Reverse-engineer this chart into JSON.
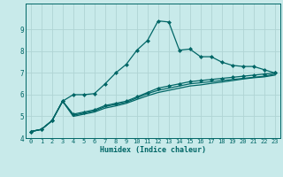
{
  "xlabel": "Humidex (Indice chaleur)",
  "ylabel": "",
  "background_color": "#c8eaea",
  "grid_color": "#b0d4d4",
  "line_color": "#006666",
  "x_values": [
    0,
    1,
    2,
    3,
    4,
    5,
    6,
    7,
    8,
    9,
    10,
    11,
    12,
    13,
    14,
    15,
    16,
    17,
    18,
    19,
    20,
    21,
    22,
    23
  ],
  "line1": [
    4.3,
    4.4,
    4.8,
    5.7,
    6.0,
    6.0,
    6.05,
    6.5,
    7.0,
    7.4,
    8.05,
    8.5,
    9.4,
    9.35,
    8.05,
    8.1,
    7.75,
    7.75,
    7.5,
    7.35,
    7.3,
    7.3,
    7.15,
    7.0
  ],
  "line2": [
    4.3,
    4.4,
    4.8,
    5.7,
    5.1,
    5.2,
    5.3,
    5.5,
    5.6,
    5.7,
    5.9,
    6.1,
    6.3,
    6.4,
    6.5,
    6.6,
    6.65,
    6.7,
    6.75,
    6.8,
    6.85,
    6.9,
    6.95,
    7.0
  ],
  "line3": [
    4.3,
    4.4,
    4.8,
    5.7,
    5.05,
    5.15,
    5.25,
    5.45,
    5.55,
    5.65,
    5.85,
    6.05,
    6.2,
    6.3,
    6.4,
    6.5,
    6.55,
    6.6,
    6.65,
    6.7,
    6.75,
    6.8,
    6.85,
    6.95
  ],
  "line4": [
    4.3,
    4.4,
    4.8,
    5.7,
    5.0,
    5.1,
    5.2,
    5.38,
    5.48,
    5.6,
    5.78,
    5.95,
    6.1,
    6.2,
    6.3,
    6.4,
    6.45,
    6.52,
    6.58,
    6.65,
    6.72,
    6.78,
    6.82,
    6.9
  ],
  "ylim": [
    4,
    10
  ],
  "xlim": [
    -0.5,
    23.5
  ],
  "yticks": [
    4,
    5,
    6,
    7,
    8,
    9
  ],
  "xticks": [
    0,
    1,
    2,
    3,
    4,
    5,
    6,
    7,
    8,
    9,
    10,
    11,
    12,
    13,
    14,
    15,
    16,
    17,
    18,
    19,
    20,
    21,
    22,
    23
  ],
  "marker": "D",
  "markersize": 2.0,
  "linewidth": 0.9,
  "tick_fontsize": 5.0,
  "xlabel_fontsize": 6.0
}
